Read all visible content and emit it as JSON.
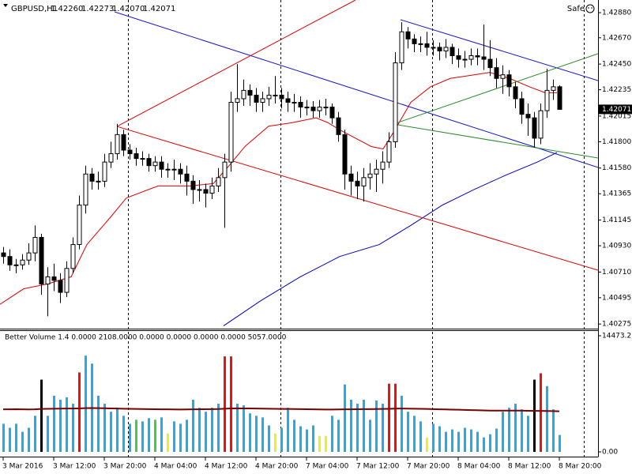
{
  "chart_data": {
    "type": "candlestick",
    "title": "GBPUSD,H1",
    "ohlc_labels": [
      "1.42260",
      "1.42273",
      "1.42070",
      "1.42071"
    ],
    "expert_label": "Safe",
    "open": [
      1.4087,
      1.4084,
      1.4077,
      1.4077,
      1.4081,
      1.4087,
      1.41,
      1.4061,
      1.4067,
      1.4064,
      1.4054,
      1.4074,
      1.4094,
      1.4127,
      1.4153,
      1.4147,
      1.4147,
      1.4163,
      1.417,
      1.4186,
      1.4173,
      1.417,
      1.4166,
      1.4166,
      1.416,
      1.4163,
      1.4157,
      1.4157,
      1.4157,
      1.4153,
      1.4147,
      1.414,
      1.414,
      1.4137,
      1.4143,
      1.415,
      1.4163,
      1.4213,
      1.4216,
      1.4223,
      1.4219,
      1.4213,
      1.4216,
      1.4219,
      1.4219,
      1.4216,
      1.4213,
      1.4213,
      1.4209,
      1.4209,
      1.4206,
      1.4209,
      1.4209,
      1.42,
      1.4186,
      1.4153,
      1.4147,
      1.4143,
      1.415,
      1.4153,
      1.4157,
      1.4163,
      1.418,
      1.4246,
      1.4272,
      1.4266,
      1.4262,
      1.4262,
      1.4259,
      1.4259,
      1.4256,
      1.4259,
      1.4252,
      1.4249,
      1.4249,
      1.4252,
      1.4251,
      1.4249,
      1.4242,
      1.4233,
      1.4236,
      1.4226,
      1.4216,
      1.4203,
      1.42,
      1.4183,
      1.4206,
      1.4223,
      1.4226
    ],
    "high": [
      1.4092,
      1.409,
      1.4082,
      1.4086,
      1.4095,
      1.411,
      1.4103,
      1.4075,
      1.4078,
      1.407,
      1.408,
      1.41,
      1.4135,
      1.416,
      1.4158,
      1.4155,
      1.417,
      1.418,
      1.4195,
      1.419,
      1.4178,
      1.4175,
      1.4172,
      1.417,
      1.4168,
      1.4168,
      1.4162,
      1.4165,
      1.4162,
      1.416,
      1.4152,
      1.4148,
      1.4145,
      1.415,
      1.4158,
      1.417,
      1.4222,
      1.4245,
      1.4232,
      1.4228,
      1.4225,
      1.4222,
      1.4226,
      1.4235,
      1.4225,
      1.4222,
      1.422,
      1.4218,
      1.4215,
      1.4214,
      1.4215,
      1.4216,
      1.4212,
      1.4205,
      1.419,
      1.416,
      1.4155,
      1.4158,
      1.4162,
      1.4165,
      1.4172,
      1.4188,
      1.4255,
      1.428,
      1.4276,
      1.427,
      1.4268,
      1.4272,
      1.4265,
      1.4263,
      1.4266,
      1.4262,
      1.4258,
      1.4256,
      1.4258,
      1.4258,
      1.4278,
      1.4265,
      1.425,
      1.4244,
      1.424,
      1.423,
      1.4222,
      1.4212,
      1.4205,
      1.4212,
      1.4241,
      1.4232,
      1.42273
    ],
    "low": [
      1.4078,
      1.4072,
      1.407,
      1.4073,
      1.4077,
      1.408,
      1.4052,
      1.4034,
      1.4055,
      1.4045,
      1.405,
      1.407,
      1.409,
      1.412,
      1.414,
      1.414,
      1.4142,
      1.4158,
      1.4165,
      1.4168,
      1.4165,
      1.416,
      1.416,
      1.4155,
      1.4155,
      1.415,
      1.415,
      1.4148,
      1.4145,
      1.4135,
      1.4128,
      1.413,
      1.4125,
      1.4132,
      1.4138,
      1.4108,
      1.4155,
      1.4205,
      1.421,
      1.421,
      1.4205,
      1.4205,
      1.421,
      1.4212,
      1.4208,
      1.4205,
      1.4205,
      1.42,
      1.4202,
      1.42,
      1.42,
      1.4202,
      1.4195,
      1.418,
      1.414,
      1.4135,
      1.4132,
      1.413,
      1.414,
      1.4138,
      1.4145,
      1.4158,
      1.4175,
      1.424,
      1.4258,
      1.4255,
      1.4255,
      1.4252,
      1.4252,
      1.4248,
      1.425,
      1.4245,
      1.4242,
      1.4242,
      1.4244,
      1.4244,
      1.424,
      1.4235,
      1.4225,
      1.422,
      1.4218,
      1.4208,
      1.4195,
      1.4185,
      1.4175,
      1.4178,
      1.42,
      1.4215,
      1.4207
    ],
    "close": [
      1.4084,
      1.4077,
      1.4077,
      1.4081,
      1.4087,
      1.41,
      1.4061,
      1.4067,
      1.4064,
      1.4054,
      1.4074,
      1.4094,
      1.4127,
      1.4153,
      1.4147,
      1.4147,
      1.4163,
      1.417,
      1.4186,
      1.4173,
      1.417,
      1.4166,
      1.4166,
      1.416,
      1.4163,
      1.4157,
      1.4157,
      1.4157,
      1.4153,
      1.4147,
      1.414,
      1.414,
      1.4137,
      1.4143,
      1.415,
      1.4163,
      1.4213,
      1.4216,
      1.4223,
      1.4219,
      1.4213,
      1.4216,
      1.4219,
      1.4219,
      1.4216,
      1.4213,
      1.4213,
      1.4209,
      1.4209,
      1.4206,
      1.4209,
      1.4209,
      1.42,
      1.4186,
      1.4153,
      1.4147,
      1.4143,
      1.415,
      1.4153,
      1.4157,
      1.4163,
      1.418,
      1.4246,
      1.4272,
      1.4266,
      1.4262,
      1.4262,
      1.4259,
      1.4259,
      1.4256,
      1.4259,
      1.4252,
      1.4249,
      1.4249,
      1.4252,
      1.4251,
      1.4249,
      1.4242,
      1.4233,
      1.4236,
      1.4226,
      1.4216,
      1.4203,
      1.42,
      1.4183,
      1.4206,
      1.4223,
      1.4226,
      1.42071
    ],
    "colors": {
      "up": "#ffffff",
      "down": "#000000",
      "outline": "#000000"
    },
    "xlim": [
      -0.5,
      94.125
    ],
    "xticks": [
      {
        "value": 0,
        "label": "3 Mar 2016"
      },
      {
        "value": 8,
        "label": "3 Mar 12:00"
      },
      {
        "value": 16,
        "label": "3 Mar 20:00"
      },
      {
        "value": 24,
        "label": "4 Mar 04:00"
      },
      {
        "value": 32,
        "label": "4 Mar 12:00"
      },
      {
        "value": 40,
        "label": "4 Mar 20:00"
      },
      {
        "value": 48,
        "label": "7 Mar 04:00"
      },
      {
        "value": 56,
        "label": "7 Mar 12:00"
      },
      {
        "value": 64,
        "label": "7 Mar 20:00"
      },
      {
        "value": 72,
        "label": "8 Mar 04:00"
      },
      {
        "value": 80,
        "label": "8 Mar 12:00"
      },
      {
        "value": 88,
        "label": "8 Mar 20:00"
      }
    ],
    "vgrid": [
      19.75,
      43.875,
      67.875,
      91.875
    ],
    "ylim": [
      1.40243,
      1.42986
    ],
    "yticks": [
      {
        "value": 1.4288,
        "label": "1.42880"
      },
      {
        "value": 1.4267,
        "label": "1.42670"
      },
      {
        "value": 1.4245,
        "label": "1.42450"
      },
      {
        "value": 1.42235,
        "label": "1.42235"
      },
      {
        "value": 1.42015,
        "label": "1.42015"
      },
      {
        "value": 1.418,
        "label": "1.41800"
      },
      {
        "value": 1.4158,
        "label": "1.41580"
      },
      {
        "value": 1.41365,
        "label": "1.41365"
      },
      {
        "value": 1.41145,
        "label": "1.41145"
      },
      {
        "value": 1.4093,
        "label": "1.40930"
      },
      {
        "value": 1.4071,
        "label": "1.40710"
      },
      {
        "value": 1.40495,
        "label": "1.40495"
      },
      {
        "value": 1.40275,
        "label": "1.40275"
      }
    ],
    "current_price": {
      "value": 1.42071,
      "label": "1.42071"
    },
    "overlays": [
      {
        "color": "#e00000",
        "x": [
          -0.5,
          3.25,
          7,
          10.75,
          13.25,
          17,
          19.5,
          24.5,
          29.5,
          33.25,
          35.75,
          38.25,
          42,
          45.75,
          49.5,
          51.375,
          53.25,
          55.75,
          58.25,
          60.125,
          62,
          64.5,
          67.625,
          70.75,
          74.5,
          77,
          80.125,
          83.25,
          85.75,
          87.625
        ],
        "y": [
          1.4044,
          1.4057,
          1.4061,
          1.4067,
          1.4094,
          1.4117,
          1.4133,
          1.4143,
          1.4143,
          1.4145,
          1.416,
          1.4176,
          1.4193,
          1.4196,
          1.42,
          1.4196,
          1.419,
          1.4183,
          1.4176,
          1.4174,
          1.419,
          1.4213,
          1.4226,
          1.4233,
          1.4236,
          1.4238,
          1.4233,
          1.4226,
          1.4221,
          1.4221
        ]
      },
      {
        "color": "#0000c8",
        "x": [
          34.875,
          40.75,
          47,
          53.25,
          59.5,
          64.5,
          69.5,
          74.5,
          79.5,
          84.5,
          87.625
        ],
        "y": [
          1.4026,
          1.4047,
          1.4067,
          1.4084,
          1.4094,
          1.411,
          1.4127,
          1.414,
          1.4152,
          1.4163,
          1.4171
        ]
      },
      {
        "color": "#1515d0",
        "x": [
          17.625,
          94.125
        ],
        "y": [
          1.42887,
          1.41585
        ]
      },
      {
        "color": "#1515d0",
        "x": [
          62.875,
          94.125
        ],
        "y": [
          1.42821,
          1.42312
        ]
      },
      {
        "color": "#e00000",
        "x": [
          18,
          55.75
        ],
        "y": [
          1.41928,
          1.42986
        ]
      },
      {
        "color": "#e00000",
        "x": [
          18,
          94.125
        ],
        "y": [
          1.41928,
          1.40725
        ]
      },
      {
        "color": "#2a8a2a",
        "x": [
          61.75,
          94.125
        ],
        "y": [
          1.41948,
          1.42537
        ]
      },
      {
        "color": "#2a8a2a",
        "x": [
          61.75,
          94.125
        ],
        "y": [
          1.41948,
          1.41664
        ]
      }
    ],
    "volume": {
      "type": "bar",
      "label": "Better Volume 1.4 0.0000 2108.0000 0.0000 0.0000 0.0000 0.0000 5057.0000",
      "values": [
        3500,
        3000,
        3500,
        2500,
        3000,
        4500,
        9000,
        4500,
        7000,
        6500,
        6800,
        6000,
        9900,
        12000,
        11000,
        7000,
        6000,
        5000,
        5500,
        4500,
        3500,
        4000,
        3800,
        4200,
        4000,
        4300,
        2300,
        3800,
        3500,
        4000,
        6500,
        5500,
        5000,
        5500,
        6000,
        11900,
        11900,
        6000,
        5800,
        4800,
        4500,
        4300,
        3300,
        2300,
        3000,
        5500,
        4000,
        3200,
        2800,
        3300,
        2000,
        2000,
        4500,
        4000,
        8400,
        6500,
        6000,
        6500,
        4000,
        6400,
        6000,
        8500,
        8500,
        7000,
        5000,
        4500,
        3800,
        1800,
        3500,
        3200,
        2500,
        2800,
        2500,
        3000,
        2800,
        2500,
        1800,
        2200,
        2900,
        5000,
        5500,
        6000,
        5300,
        4500,
        9000,
        9800,
        8200,
        5300,
        2108
      ],
      "colors": [
        "#2ae",
        "#2ae",
        "#2ae",
        "#2ae",
        "#2ae",
        "#2ae",
        "#000",
        "#2ae",
        "#2ae",
        "#2ae",
        "#2ae",
        "#2ae",
        "#e11",
        "#2ae",
        "#2ae",
        "#2ae",
        "#2ae",
        "#2ae",
        "#2ae",
        "#2ae",
        "#2ae",
        "#4c4",
        "#2ae",
        "#2ae",
        "#4c4",
        "#2ae",
        "#ee2",
        "#2ae",
        "#2ae",
        "#2ae",
        "#2ae",
        "#2ae",
        "#2ae",
        "#2ae",
        "#2ae",
        "#e11",
        "#e11",
        "#2ae",
        "#2ae",
        "#2ae",
        "#2ae",
        "#2ae",
        "#2ae",
        "#ee2",
        "#2ae",
        "#2ae",
        "#2ae",
        "#2ae",
        "#2ae",
        "#2ae",
        "#ee2",
        "#ee2",
        "#2ae",
        "#2ae",
        "#2ae",
        "#2ae",
        "#2ae",
        "#2ae",
        "#2ae",
        "#2ae",
        "#2ae",
        "#e11",
        "#e11",
        "#2ae",
        "#2ae",
        "#2ae",
        "#2ae",
        "#ee2",
        "#2ae",
        "#2ae",
        "#2ae",
        "#2ae",
        "#2ae",
        "#2ae",
        "#2ae",
        "#2ae",
        "#2ae",
        "#2ae",
        "#2ae",
        "#2ae",
        "#2ae",
        "#2ae",
        "#2ae",
        "#2ae",
        "#000",
        "#e11",
        "#2ae",
        "#2ae",
        "#2ae"
      ],
      "ma": {
        "color": "#7a0000",
        "values": [
          5300,
          5310,
          5320,
          5300,
          5290,
          5300,
          5350,
          5360,
          5380,
          5390,
          5400,
          5400,
          5420,
          5450,
          5460,
          5450,
          5440,
          5420,
          5400,
          5380,
          5360,
          5350,
          5340,
          5330,
          5320,
          5310,
          5300,
          5290,
          5280,
          5290,
          5300,
          5310,
          5320,
          5330,
          5340,
          5380,
          5420,
          5430,
          5420,
          5410,
          5400,
          5390,
          5380,
          5360,
          5350,
          5350,
          5340,
          5330,
          5320,
          5300,
          5290,
          5280,
          5280,
          5290,
          5300,
          5310,
          5320,
          5330,
          5330,
          5340,
          5350,
          5370,
          5390,
          5400,
          5390,
          5380,
          5370,
          5350,
          5330,
          5310,
          5290,
          5270,
          5250,
          5230,
          5210,
          5190,
          5170,
          5150,
          5140,
          5140,
          5150,
          5150,
          5140,
          5120,
          5110,
          5110,
          5100,
          5080,
          5057
        ]
      },
      "ylim": [
        0,
        14473.2
      ],
      "yticks": [
        14473.2,
        {
          "value": 0,
          "label": "0.00"
        }
      ]
    }
  }
}
